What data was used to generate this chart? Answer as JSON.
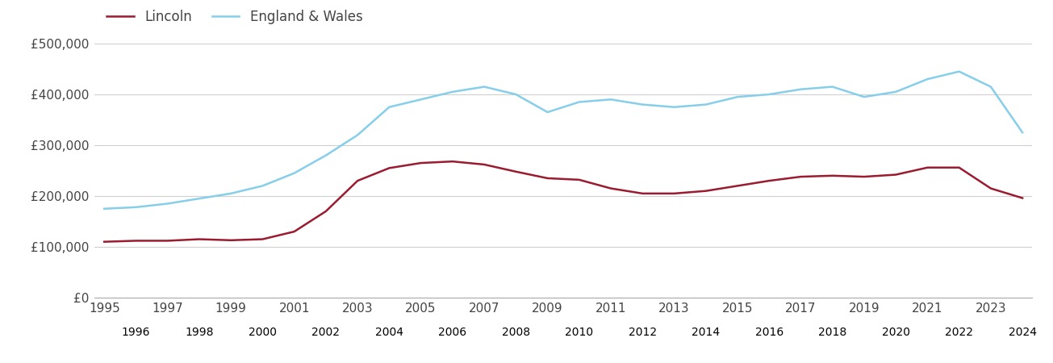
{
  "years": [
    1995,
    1996,
    1997,
    1998,
    1999,
    2000,
    2001,
    2002,
    2003,
    2004,
    2005,
    2006,
    2007,
    2008,
    2009,
    2010,
    2011,
    2012,
    2013,
    2014,
    2015,
    2016,
    2017,
    2018,
    2019,
    2020,
    2021,
    2022,
    2023,
    2024
  ],
  "lincoln": [
    110000,
    112000,
    112000,
    115000,
    113000,
    115000,
    130000,
    170000,
    230000,
    255000,
    265000,
    268000,
    262000,
    248000,
    235000,
    232000,
    215000,
    205000,
    205000,
    210000,
    220000,
    230000,
    238000,
    240000,
    238000,
    242000,
    256000,
    256000,
    215000,
    196000
  ],
  "england_wales": [
    175000,
    178000,
    185000,
    195000,
    205000,
    220000,
    245000,
    280000,
    320000,
    375000,
    390000,
    405000,
    415000,
    400000,
    365000,
    385000,
    390000,
    380000,
    375000,
    380000,
    395000,
    400000,
    410000,
    415000,
    395000,
    405000,
    430000,
    445000,
    415000,
    325000
  ],
  "lincoln_color": "#9b1b30",
  "england_wales_color": "#87CEEB",
  "background_color": "#ffffff",
  "grid_color": "#d0d0d0",
  "ylim": [
    0,
    500000
  ],
  "yticks": [
    0,
    100000,
    200000,
    300000,
    400000,
    500000
  ],
  "ytick_labels": [
    "£0",
    "£100,000",
    "£200,000",
    "£300,000",
    "£400,000",
    "£500,000"
  ],
  "legend_lincoln": "Lincoln",
  "legend_ew": "England & Wales",
  "line_width": 1.8,
  "odd_years": [
    1995,
    1997,
    1999,
    2001,
    2003,
    2005,
    2007,
    2009,
    2011,
    2013,
    2015,
    2017,
    2019,
    2021,
    2023
  ],
  "even_years": [
    1996,
    1998,
    2000,
    2002,
    2004,
    2006,
    2008,
    2010,
    2012,
    2014,
    2016,
    2018,
    2020,
    2022,
    2024
  ]
}
